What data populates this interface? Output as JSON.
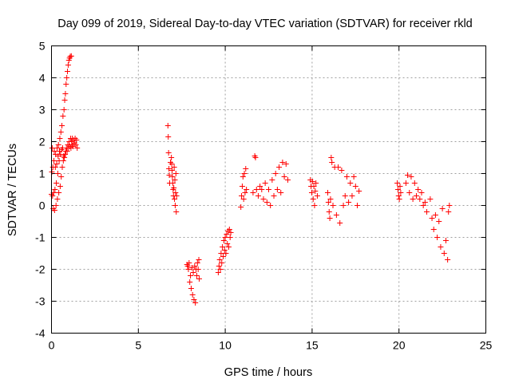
{
  "chart_data": {
    "type": "scatter",
    "title": "Day 099 of 2019, Sidereal Day-to-day VTEC variation (SDTVAR) for receiver rkld",
    "xlabel": "GPS time / hours",
    "ylabel": "SDTVAR / TECUs",
    "xlim": [
      0,
      25
    ],
    "ylim": [
      -4,
      5
    ],
    "xticks": [
      "0",
      "5",
      "10",
      "15",
      "20",
      "25"
    ],
    "yticks": [
      "-4",
      "-3",
      "-2",
      "-1",
      "0",
      "1",
      "2",
      "3",
      "4",
      "5"
    ],
    "grid": true,
    "marker": "plus",
    "color": "#ff0000",
    "series": [
      {
        "points": [
          [
            0.0,
            0.35
          ],
          [
            0.02,
            1.05
          ],
          [
            0.04,
            1.8
          ],
          [
            0.06,
            0.3
          ],
          [
            0.08,
            1.2
          ],
          [
            0.1,
            -0.1
          ],
          [
            0.12,
            0.4
          ],
          [
            0.14,
            1.4
          ],
          [
            0.16,
            1.7
          ],
          [
            0.18,
            -0.15
          ],
          [
            0.2,
            0.5
          ],
          [
            0.22,
            1.2
          ],
          [
            0.24,
            1.6
          ],
          [
            0.26,
            0.0
          ],
          [
            0.28,
            0.7
          ],
          [
            0.3,
            1.3
          ],
          [
            0.32,
            1.8
          ],
          [
            0.34,
            0.2
          ],
          [
            0.36,
            1.0
          ],
          [
            0.38,
            1.55
          ],
          [
            0.4,
            1.9
          ],
          [
            0.42,
            0.4
          ],
          [
            0.44,
            1.4
          ],
          [
            0.46,
            1.7
          ],
          [
            0.48,
            2.1
          ],
          [
            0.5,
            0.6
          ],
          [
            0.52,
            1.6
          ],
          [
            0.54,
            2.3
          ],
          [
            0.56,
            0.9
          ],
          [
            0.58,
            1.75
          ],
          [
            0.6,
            2.5
          ],
          [
            0.62,
            1.2
          ],
          [
            0.64,
            1.8
          ],
          [
            0.66,
            2.8
          ],
          [
            0.68,
            1.4
          ],
          [
            0.7,
            1.55
          ],
          [
            0.72,
            3.0
          ],
          [
            0.74,
            1.5
          ],
          [
            0.76,
            3.3
          ],
          [
            0.78,
            1.6
          ],
          [
            0.8,
            3.5
          ],
          [
            0.82,
            1.7
          ],
          [
            0.84,
            3.8
          ],
          [
            0.86,
            1.8
          ],
          [
            0.88,
            4.0
          ],
          [
            0.9,
            1.7
          ],
          [
            0.92,
            4.2
          ],
          [
            0.94,
            1.9
          ],
          [
            0.96,
            4.4
          ],
          [
            0.98,
            1.8
          ],
          [
            1.0,
            4.55
          ],
          [
            1.02,
            2.0
          ],
          [
            1.04,
            4.62
          ],
          [
            1.06,
            1.85
          ],
          [
            1.08,
            4.67
          ],
          [
            1.1,
            2.1
          ],
          [
            1.12,
            1.8
          ],
          [
            1.14,
            4.68
          ],
          [
            1.16,
            2.0
          ],
          [
            1.18,
            1.9
          ],
          [
            1.2,
            2.1
          ],
          [
            1.24,
            1.85
          ],
          [
            1.28,
            2.05
          ],
          [
            1.32,
            1.95
          ],
          [
            1.36,
            2.1
          ],
          [
            1.4,
            1.9
          ],
          [
            1.44,
            2.05
          ],
          [
            1.48,
            1.8
          ],
          [
            6.7,
            2.5
          ],
          [
            6.72,
            2.15
          ],
          [
            6.74,
            1.65
          ],
          [
            6.76,
            1.15
          ],
          [
            6.78,
            0.95
          ],
          [
            6.8,
            0.7
          ],
          [
            6.85,
            1.35
          ],
          [
            6.9,
            1.5
          ],
          [
            6.92,
            1.3
          ],
          [
            6.94,
            1.1
          ],
          [
            6.96,
            0.9
          ],
          [
            6.98,
            0.7
          ],
          [
            7.0,
            0.5
          ],
          [
            7.02,
            0.3
          ],
          [
            7.04,
            0.55
          ],
          [
            7.06,
            1.2
          ],
          [
            7.08,
            0.2
          ],
          [
            7.1,
            0.8
          ],
          [
            7.12,
            0.0
          ],
          [
            7.14,
            0.4
          ],
          [
            7.16,
            1.0
          ],
          [
            7.18,
            -0.2
          ],
          [
            7.2,
            0.3
          ],
          [
            7.8,
            -1.85
          ],
          [
            7.84,
            -1.9
          ],
          [
            7.88,
            -2.0
          ],
          [
            7.92,
            -1.8
          ],
          [
            7.96,
            -2.4
          ],
          [
            8.0,
            -2.2
          ],
          [
            8.04,
            -2.6
          ],
          [
            8.08,
            -1.95
          ],
          [
            8.12,
            -2.8
          ],
          [
            8.16,
            -2.1
          ],
          [
            8.2,
            -2.95
          ],
          [
            8.24,
            -1.9
          ],
          [
            8.28,
            -3.05
          ],
          [
            8.32,
            -2.0
          ],
          [
            8.36,
            -2.2
          ],
          [
            8.4,
            -1.8
          ],
          [
            8.44,
            -2.0
          ],
          [
            8.48,
            -1.7
          ],
          [
            8.5,
            -2.3
          ],
          [
            9.6,
            -2.1
          ],
          [
            9.64,
            -1.9
          ],
          [
            9.68,
            -1.7
          ],
          [
            9.72,
            -2.0
          ],
          [
            9.76,
            -1.5
          ],
          [
            9.8,
            -1.8
          ],
          [
            9.84,
            -1.3
          ],
          [
            9.88,
            -1.6
          ],
          [
            9.92,
            -1.1
          ],
          [
            9.96,
            -1.4
          ],
          [
            10.0,
            -1.0
          ],
          [
            10.04,
            -1.5
          ],
          [
            10.08,
            -0.9
          ],
          [
            10.12,
            -1.2
          ],
          [
            10.16,
            -0.8
          ],
          [
            10.2,
            -1.3
          ],
          [
            10.24,
            -0.75
          ],
          [
            10.28,
            -1.0
          ],
          [
            10.32,
            -0.85
          ],
          [
            10.9,
            -0.05
          ],
          [
            10.94,
            0.3
          ],
          [
            10.98,
            0.6
          ],
          [
            11.02,
            0.9
          ],
          [
            11.06,
            0.2
          ],
          [
            11.1,
            1.0
          ],
          [
            11.14,
            0.4
          ],
          [
            11.18,
            1.15
          ],
          [
            11.22,
            0.5
          ],
          [
            11.6,
            0.4
          ],
          [
            11.7,
            1.55
          ],
          [
            11.74,
            1.5
          ],
          [
            11.8,
            0.5
          ],
          [
            11.9,
            0.3
          ],
          [
            12.0,
            0.6
          ],
          [
            12.1,
            0.5
          ],
          [
            12.2,
            0.2
          ],
          [
            12.3,
            0.7
          ],
          [
            12.4,
            0.1
          ],
          [
            12.5,
            0.5
          ],
          [
            12.6,
            0.0
          ],
          [
            12.7,
            0.8
          ],
          [
            12.8,
            0.3
          ],
          [
            12.9,
            1.0
          ],
          [
            13.0,
            0.5
          ],
          [
            13.1,
            1.2
          ],
          [
            13.2,
            0.4
          ],
          [
            13.3,
            1.35
          ],
          [
            13.4,
            0.9
          ],
          [
            13.5,
            1.3
          ],
          [
            13.6,
            0.8
          ],
          [
            14.9,
            0.8
          ],
          [
            14.94,
            0.6
          ],
          [
            14.98,
            0.4
          ],
          [
            15.02,
            0.75
          ],
          [
            15.06,
            0.2
          ],
          [
            15.1,
            0.6
          ],
          [
            15.14,
            0.0
          ],
          [
            15.18,
            0.45
          ],
          [
            15.22,
            0.7
          ],
          [
            15.3,
            0.3
          ],
          [
            15.9,
            0.4
          ],
          [
            15.94,
            0.1
          ],
          [
            15.98,
            -0.2
          ],
          [
            16.02,
            -0.4
          ],
          [
            16.06,
            0.2
          ],
          [
            16.1,
            1.5
          ],
          [
            16.14,
            1.35
          ],
          [
            16.2,
            0.0
          ],
          [
            16.3,
            1.2
          ],
          [
            16.4,
            -0.3
          ],
          [
            16.5,
            1.2
          ],
          [
            16.6,
            -0.55
          ],
          [
            16.7,
            1.1
          ],
          [
            16.8,
            0.0
          ],
          [
            16.9,
            0.3
          ],
          [
            17.0,
            0.9
          ],
          [
            17.1,
            0.1
          ],
          [
            17.2,
            0.7
          ],
          [
            17.3,
            0.3
          ],
          [
            17.4,
            0.9
          ],
          [
            17.5,
            0.6
          ],
          [
            17.6,
            0.0
          ],
          [
            17.7,
            0.45
          ],
          [
            19.9,
            0.7
          ],
          [
            19.94,
            0.5
          ],
          [
            19.98,
            0.3
          ],
          [
            20.02,
            0.2
          ],
          [
            20.06,
            0.6
          ],
          [
            20.1,
            0.4
          ],
          [
            20.4,
            0.7
          ],
          [
            20.5,
            0.95
          ],
          [
            20.6,
            0.4
          ],
          [
            20.7,
            0.9
          ],
          [
            20.8,
            0.2
          ],
          [
            20.9,
            0.7
          ],
          [
            21.0,
            0.3
          ],
          [
            21.1,
            0.5
          ],
          [
            21.2,
            0.2
          ],
          [
            21.3,
            0.4
          ],
          [
            21.4,
            0.0
          ],
          [
            21.5,
            0.1
          ],
          [
            21.6,
            -0.2
          ],
          [
            21.8,
            0.2
          ],
          [
            21.9,
            -0.4
          ],
          [
            22.0,
            -0.75
          ],
          [
            22.1,
            -0.3
          ],
          [
            22.2,
            -1.0
          ],
          [
            22.3,
            -0.5
          ],
          [
            22.4,
            -1.3
          ],
          [
            22.5,
            -0.1
          ],
          [
            22.6,
            -1.5
          ],
          [
            22.7,
            -1.1
          ],
          [
            22.8,
            -1.7
          ],
          [
            22.85,
            -0.2
          ],
          [
            22.9,
            0.0
          ]
        ]
      }
    ]
  }
}
